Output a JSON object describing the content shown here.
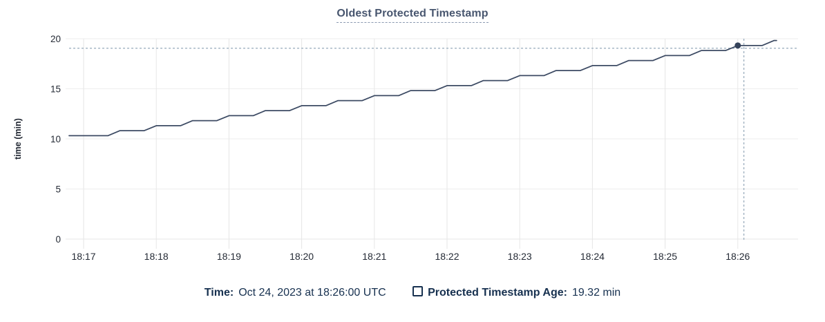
{
  "chart_data": {
    "type": "line",
    "title": "Oldest Protected Timestamp",
    "ylabel": "time (min)",
    "xlabel": "",
    "grid": true,
    "ylim": [
      0,
      20
    ],
    "y_ticks": [
      0,
      5,
      10,
      15,
      20
    ],
    "x_tick_labels": [
      "18:17",
      "18:18",
      "18:19",
      "18:20",
      "18:21",
      "18:22",
      "18:23",
      "18:24",
      "18:25",
      "18:26"
    ],
    "x_tick_interval_sec": 60,
    "series": [
      {
        "name": "Protected Timestamp Age",
        "unit": "min",
        "points": [
          [
            -12,
            10.32
          ],
          [
            0,
            10.32
          ],
          [
            20,
            10.32
          ],
          [
            30,
            10.82
          ],
          [
            50,
            10.82
          ],
          [
            60,
            11.32
          ],
          [
            80,
            11.32
          ],
          [
            90,
            11.82
          ],
          [
            110,
            11.82
          ],
          [
            120,
            12.32
          ],
          [
            140,
            12.32
          ],
          [
            150,
            12.82
          ],
          [
            170,
            12.82
          ],
          [
            180,
            13.32
          ],
          [
            200,
            13.32
          ],
          [
            210,
            13.82
          ],
          [
            230,
            13.82
          ],
          [
            240,
            14.32
          ],
          [
            260,
            14.32
          ],
          [
            270,
            14.82
          ],
          [
            290,
            14.82
          ],
          [
            300,
            15.32
          ],
          [
            320,
            15.32
          ],
          [
            330,
            15.82
          ],
          [
            350,
            15.82
          ],
          [
            360,
            16.32
          ],
          [
            380,
            16.32
          ],
          [
            390,
            16.82
          ],
          [
            410,
            16.82
          ],
          [
            420,
            17.32
          ],
          [
            440,
            17.32
          ],
          [
            450,
            17.82
          ],
          [
            470,
            17.82
          ],
          [
            480,
            18.32
          ],
          [
            500,
            18.32
          ],
          [
            510,
            18.82
          ],
          [
            530,
            18.82
          ],
          [
            540,
            19.32
          ],
          [
            560,
            19.32
          ],
          [
            570,
            19.82
          ],
          [
            572,
            19.82
          ]
        ]
      }
    ],
    "highlight_point": {
      "time_label": "18:26:00",
      "t_sec": 540,
      "value_min": 19.32
    },
    "crosshair": {
      "t_sec": 545,
      "value_min": 19.05
    }
  },
  "legend": {
    "time_label": "Time:",
    "time_value": "Oct 24, 2023 at 18:26:00 UTC",
    "series_label": "Protected Timestamp Age:",
    "series_value": "19.32 min"
  },
  "colors": {
    "line": "#3c4a63",
    "dot": "#34425a",
    "crosshair": "#9fb1c1",
    "grid_h": "#ededed",
    "grid_v": "#e6e6e6",
    "axis_line": "#e7e7e7",
    "tick_text": "#242a35",
    "axis_label_text": "#242a35",
    "title_text": "#48566f",
    "legend_text": "#16304f"
  }
}
